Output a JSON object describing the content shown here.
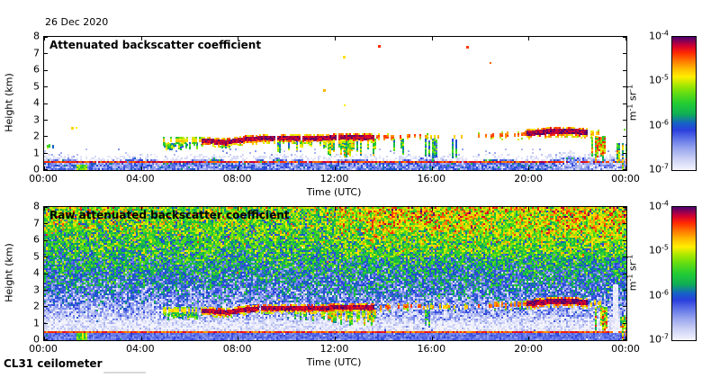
{
  "page": {
    "date_label": "26 Dec 2020",
    "footer_label": "CL31 ceilometer",
    "background": "#ffffff",
    "axis_color": "#000000"
  },
  "colormap": [
    [
      0.0,
      "#f4f4fd"
    ],
    [
      0.08,
      "#cdd2f5"
    ],
    [
      0.16,
      "#9aa7ee"
    ],
    [
      0.24,
      "#5b6fe6"
    ],
    [
      0.3,
      "#2b3fdd"
    ],
    [
      0.35,
      "#1560c8"
    ],
    [
      0.42,
      "#0fae55"
    ],
    [
      0.5,
      "#22cc33"
    ],
    [
      0.58,
      "#66dd11"
    ],
    [
      0.64,
      "#aae800"
    ],
    [
      0.7,
      "#ffee00"
    ],
    [
      0.76,
      "#ffbb00"
    ],
    [
      0.82,
      "#ff7700"
    ],
    [
      0.88,
      "#ff2a00"
    ],
    [
      0.93,
      "#d40030"
    ],
    [
      1.0,
      "#4c0070"
    ]
  ],
  "chart_data": [
    {
      "type": "heatmap",
      "field": "processed",
      "seed": 101,
      "title": "Attenuated backscatter coefficient",
      "xlabel": "Time (UTC)",
      "ylabel": "Height (km)",
      "x_ticks": [
        "00:00",
        "04:00",
        "08:00",
        "12:00",
        "16:00",
        "20:00",
        "00:00"
      ],
      "x_range_hours": [
        0,
        24
      ],
      "y_ticks": [
        "0",
        "1",
        "2",
        "3",
        "4",
        "5",
        "6",
        "7",
        "8"
      ],
      "ylim": [
        0,
        8
      ],
      "grid": false,
      "colorbar": {
        "tick_base": "10",
        "tick_exponents": [
          "-4",
          "-5",
          "-6",
          "-7"
        ],
        "unit_parts": [
          [
            "m",
            false
          ],
          [
            "-1",
            true
          ],
          [
            " sr",
            false
          ],
          [
            "-1",
            true
          ]
        ],
        "range_log10": [
          -7,
          -4
        ],
        "position": "right"
      },
      "features": {
        "surface": {
          "top_base": 0.58,
          "wave_amp": 0.08,
          "band_lv": -6.35,
          "band_jit": 0.3,
          "line_h0": 0.4,
          "line_h1": 0.5,
          "line_lv": -4.35,
          "line_jit": 0.25,
          "light_t": 21.3,
          "light_lv": -6.6,
          "speckle_prob": 0.04,
          "green_patch": {
            "t0": 1.35,
            "t1": 1.75,
            "h0": 0,
            "h1": 0.35,
            "lv": -5.3,
            "jit": 0.4
          }
        },
        "cloud_segments": [
          {
            "points": [
              [
                4.9,
                1.76
              ],
              [
                6.5,
                1.76
              ]
            ],
            "thick": 4,
            "core": -4.85,
            "fringe": -5.3,
            "density": 0.7,
            "fringe_p": 0.8
          },
          {
            "points": [
              [
                6.5,
                1.76
              ],
              [
                7.1,
                1.72
              ],
              [
                7.5,
                1.67
              ],
              [
                8.1,
                1.82
              ],
              [
                8.8,
                1.9
              ],
              [
                10.5,
                1.93
              ],
              [
                13.6,
                1.97
              ]
            ],
            "thick": 5,
            "core": -4.15,
            "fringe": -4.7,
            "density": 0.97,
            "fringe_p": 0.75
          },
          {
            "points": [
              [
                13.7,
                2.0
              ],
              [
                15.5,
                2.05
              ]
            ],
            "thick": 4,
            "core": -4.5,
            "fringe": -4.9,
            "density": 0.5,
            "fringe_p": 0.4
          },
          {
            "points": [
              [
                15.6,
                2.0
              ],
              [
                17.6,
                2.05
              ]
            ],
            "thick": 3,
            "core": -4.75,
            "fringe": -5.1,
            "density": 0.25,
            "fringe_p": 0.3
          },
          {
            "points": [
              [
                17.8,
                2.05
              ],
              [
                19.85,
                2.15
              ]
            ],
            "thick": 4,
            "core": -4.5,
            "fringe": -4.9,
            "density": 0.45,
            "fringe_p": 0.4
          },
          {
            "points": [
              [
                19.9,
                2.2
              ],
              [
                20.7,
                2.3
              ],
              [
                21.7,
                2.33
              ],
              [
                22.4,
                2.26
              ]
            ],
            "thick": 6,
            "core": -4.1,
            "fringe": -4.6,
            "density": 1,
            "fringe_p": 0.8
          },
          {
            "points": [
              [
                22.5,
                2.2
              ],
              [
                23.1,
                2.32
              ]
            ],
            "thick": 3,
            "core": -4.7,
            "fringe": -5.1,
            "density": 0.5,
            "fringe_p": 0.4
          }
        ],
        "virga": [
          {
            "t0": 0.05,
            "t1": 0.35,
            "h_top": 1.6,
            "h_bot": 1.35,
            "d": 0.8,
            "lv": -5.5,
            "j": 0.7
          },
          {
            "t0": 4.95,
            "t1": 6.3,
            "h_top": 1.7,
            "h_bot": 1.25,
            "d": 0.8,
            "lv": -5.45,
            "j": 0.8
          },
          {
            "t0": 7.3,
            "t1": 7.6,
            "h_top": 1.6,
            "h_bot": 1.3,
            "d": 0.6,
            "lv": -5.5,
            "j": 0.7
          },
          {
            "t0": 9.6,
            "t1": 10.1,
            "h_top": 1.85,
            "h_bot": 0.95,
            "d": 0.5,
            "lv": -5.6,
            "j": 0.8
          },
          {
            "t0": 10.3,
            "t1": 11.6,
            "h_top": 1.85,
            "h_bot": 1.25,
            "d": 0.45,
            "lv": -5.4,
            "j": 0.8
          },
          {
            "t0": 11.7,
            "t1": 13.7,
            "h_top": 1.9,
            "h_bot": 0.85,
            "d": 0.75,
            "lv": -5.2,
            "j": 0.9
          },
          {
            "t0": 14.4,
            "t1": 14.8,
            "h_top": 1.95,
            "h_bot": 1.0,
            "d": 0.5,
            "lv": -5.5,
            "j": 0.8
          },
          {
            "t0": 15.7,
            "t1": 16.2,
            "h_top": 1.9,
            "h_bot": 0.55,
            "d": 0.45,
            "lv": -5.7,
            "j": 0.8
          },
          {
            "t0": 16.8,
            "t1": 17.1,
            "h_top": 1.9,
            "h_bot": 0.8,
            "d": 0.4,
            "lv": -5.6,
            "j": 0.7
          },
          {
            "t0": 22.55,
            "t1": 23.2,
            "h_top": 2.1,
            "h_bot": 0.4,
            "d": 0.7,
            "lv": -5.0,
            "j": 1.0
          },
          {
            "t0": 23.6,
            "t1": 24.0,
            "h_top": 1.65,
            "h_bot": 0.0,
            "d": 0.85,
            "lv": -5.2,
            "j": 1.1
          }
        ],
        "dots": [
          {
            "t": 1.12,
            "h": 2.62,
            "lv": -4.8,
            "s": 3
          },
          {
            "t": 1.28,
            "h": 2.58,
            "lv": -4.9,
            "s": 2
          },
          {
            "t": 11.5,
            "h": 4.88,
            "lv": -4.7,
            "s": 3
          },
          {
            "t": 12.35,
            "h": 3.95,
            "lv": -4.9,
            "s": 2
          },
          {
            "t": 12.3,
            "h": 6.85,
            "lv": -4.85,
            "s": 3
          },
          {
            "t": 13.75,
            "h": 7.5,
            "lv": -4.35,
            "s": 3
          },
          {
            "t": 17.4,
            "h": 7.45,
            "lv": -4.4,
            "s": 3
          },
          {
            "t": 18.35,
            "h": 6.5,
            "lv": -4.5,
            "s": 2
          },
          {
            "t": 23.9,
            "h": 2.5,
            "lv": -5.3,
            "s": 2
          }
        ]
      }
    },
    {
      "type": "heatmap",
      "field": "raw",
      "seed": 202,
      "title": "Raw attenuated backscatter coefficient",
      "xlabel": "Time (UTC)",
      "ylabel": "Height (km)",
      "x_ticks": [
        "00:00",
        "04:00",
        "08:00",
        "12:00",
        "16:00",
        "20:00",
        "00:00"
      ],
      "x_range_hours": [
        0,
        24
      ],
      "y_ticks": [
        "0",
        "1",
        "2",
        "3",
        "4",
        "5",
        "6",
        "7",
        "8"
      ],
      "ylim": [
        0,
        8
      ],
      "grid": false,
      "colorbar": {
        "tick_base": "10",
        "tick_exponents": [
          "-4",
          "-5",
          "-6",
          "-7"
        ],
        "unit_parts": [
          [
            "m",
            false
          ],
          [
            "-1",
            true
          ],
          [
            " sr",
            false
          ],
          [
            "-1",
            true
          ]
        ],
        "range_log10": [
          -7,
          -4
        ],
        "position": "right"
      },
      "features": {
        "noise": {
          "profile": [
            [
              0,
              -6.3
            ],
            [
              0.42,
              -6.3
            ],
            [
              0.5,
              -6.85
            ],
            [
              0.95,
              -6.95
            ],
            [
              1.4,
              -6.7
            ],
            [
              2.2,
              -6.45
            ],
            [
              3.2,
              -6.1
            ],
            [
              4.5,
              -5.8
            ],
            [
              5.5,
              -5.6
            ],
            [
              6.5,
              -5.4
            ],
            [
              7.5,
              -5.25
            ],
            [
              8,
              -5.2
            ]
          ],
          "jitter": [
            [
              0,
              0.12
            ],
            [
              0.42,
              0.12
            ],
            [
              0.5,
              0.18
            ],
            [
              0.95,
              0.22
            ],
            [
              1.4,
              0.32
            ],
            [
              2.2,
              0.4
            ],
            [
              3.2,
              0.45
            ],
            [
              8,
              0.5
            ]
          ],
          "boosts": [
            {
              "t0": 12,
              "t1": 24.3,
              "h0": 5,
              "h1": 8.2,
              "amt": 0.22
            },
            {
              "t0": 13.5,
              "t1": 18.5,
              "h0": 6.6,
              "h1": 8.2,
              "amt": 0.18
            },
            {
              "t0": 19.5,
              "t1": 24.3,
              "h0": 6.2,
              "h1": 8.2,
              "amt": 0.12
            },
            {
              "t0": 0,
              "t1": 3,
              "h0": 6.5,
              "h1": 8.2,
              "amt": 0.08
            }
          ],
          "spike_up_prob": 0.012,
          "spike_up_amt": 0.8,
          "spike_dn_prob": 0.02,
          "spike_dn_amt": 0.55,
          "surface_line": {
            "h0": 0.4,
            "h1": 0.5,
            "lv": -4.45,
            "jit": 0.25
          },
          "green_patch": {
            "t0": 1.35,
            "t1": 1.75,
            "h0": 0,
            "h1": 0.4,
            "lv": -5.3,
            "jit": 0.4
          },
          "white_columns": [
            {
              "t0": 23.45,
              "t1": 23.7,
              "h0": 0.45,
              "h1": 3.3
            },
            {
              "t0": 15.75,
              "t1": 15.9,
              "h0": 0.5,
              "h1": 1.9
            }
          ]
        },
        "cloud_segments": [
          {
            "points": [
              [
                4.9,
                1.76
              ],
              [
                6.5,
                1.76
              ]
            ],
            "thick": 4,
            "core": -4.85,
            "fringe": -5.3,
            "density": 0.7,
            "fringe_p": 0.8
          },
          {
            "points": [
              [
                6.5,
                1.76
              ],
              [
                7.1,
                1.72
              ],
              [
                7.5,
                1.67
              ],
              [
                8.1,
                1.82
              ],
              [
                8.8,
                1.9
              ],
              [
                10.5,
                1.93
              ],
              [
                13.6,
                1.97
              ]
            ],
            "thick": 5,
            "core": -4.15,
            "fringe": -4.7,
            "density": 0.97,
            "fringe_p": 0.75
          },
          {
            "points": [
              [
                13.7,
                2.0
              ],
              [
                15.5,
                2.05
              ]
            ],
            "thick": 4,
            "core": -4.5,
            "fringe": -4.9,
            "density": 0.5,
            "fringe_p": 0.4
          },
          {
            "points": [
              [
                15.6,
                2.0
              ],
              [
                17.6,
                2.05
              ]
            ],
            "thick": 3,
            "core": -4.75,
            "fringe": -5.1,
            "density": 0.25,
            "fringe_p": 0.3
          },
          {
            "points": [
              [
                17.8,
                2.05
              ],
              [
                19.85,
                2.15
              ]
            ],
            "thick": 4,
            "core": -4.5,
            "fringe": -4.9,
            "density": 0.45,
            "fringe_p": 0.4
          },
          {
            "points": [
              [
                19.9,
                2.2
              ],
              [
                20.7,
                2.3
              ],
              [
                21.7,
                2.33
              ],
              [
                22.4,
                2.26
              ]
            ],
            "thick": 6,
            "core": -4.1,
            "fringe": -4.6,
            "density": 1,
            "fringe_p": 0.8
          },
          {
            "points": [
              [
                22.5,
                2.2
              ],
              [
                23.1,
                2.32
              ]
            ],
            "thick": 3,
            "core": -4.7,
            "fringe": -5.1,
            "density": 0.5,
            "fringe_p": 0.4
          }
        ],
        "virga": [
          {
            "t0": 4.95,
            "t1": 6.3,
            "h_top": 1.7,
            "h_bot": 1.25,
            "d": 0.7,
            "lv": -5.45,
            "j": 0.8
          },
          {
            "t0": 10.3,
            "t1": 11.6,
            "h_top": 1.85,
            "h_bot": 1.25,
            "d": 0.4,
            "lv": -5.4,
            "j": 0.8
          },
          {
            "t0": 11.7,
            "t1": 13.7,
            "h_top": 1.9,
            "h_bot": 0.95,
            "d": 0.6,
            "lv": -5.2,
            "j": 0.9
          },
          {
            "t0": 15.7,
            "t1": 16.2,
            "h_top": 1.9,
            "h_bot": 0.6,
            "d": 0.4,
            "lv": -5.7,
            "j": 0.8
          },
          {
            "t0": 22.55,
            "t1": 23.2,
            "h_top": 2.1,
            "h_bot": 0.4,
            "d": 0.6,
            "lv": -5.0,
            "j": 1.0
          },
          {
            "t0": 23.75,
            "t1": 24.0,
            "h_top": 1.5,
            "h_bot": 0.0,
            "d": 0.85,
            "lv": -5.1,
            "j": 1.1
          }
        ],
        "dots": []
      }
    }
  ]
}
